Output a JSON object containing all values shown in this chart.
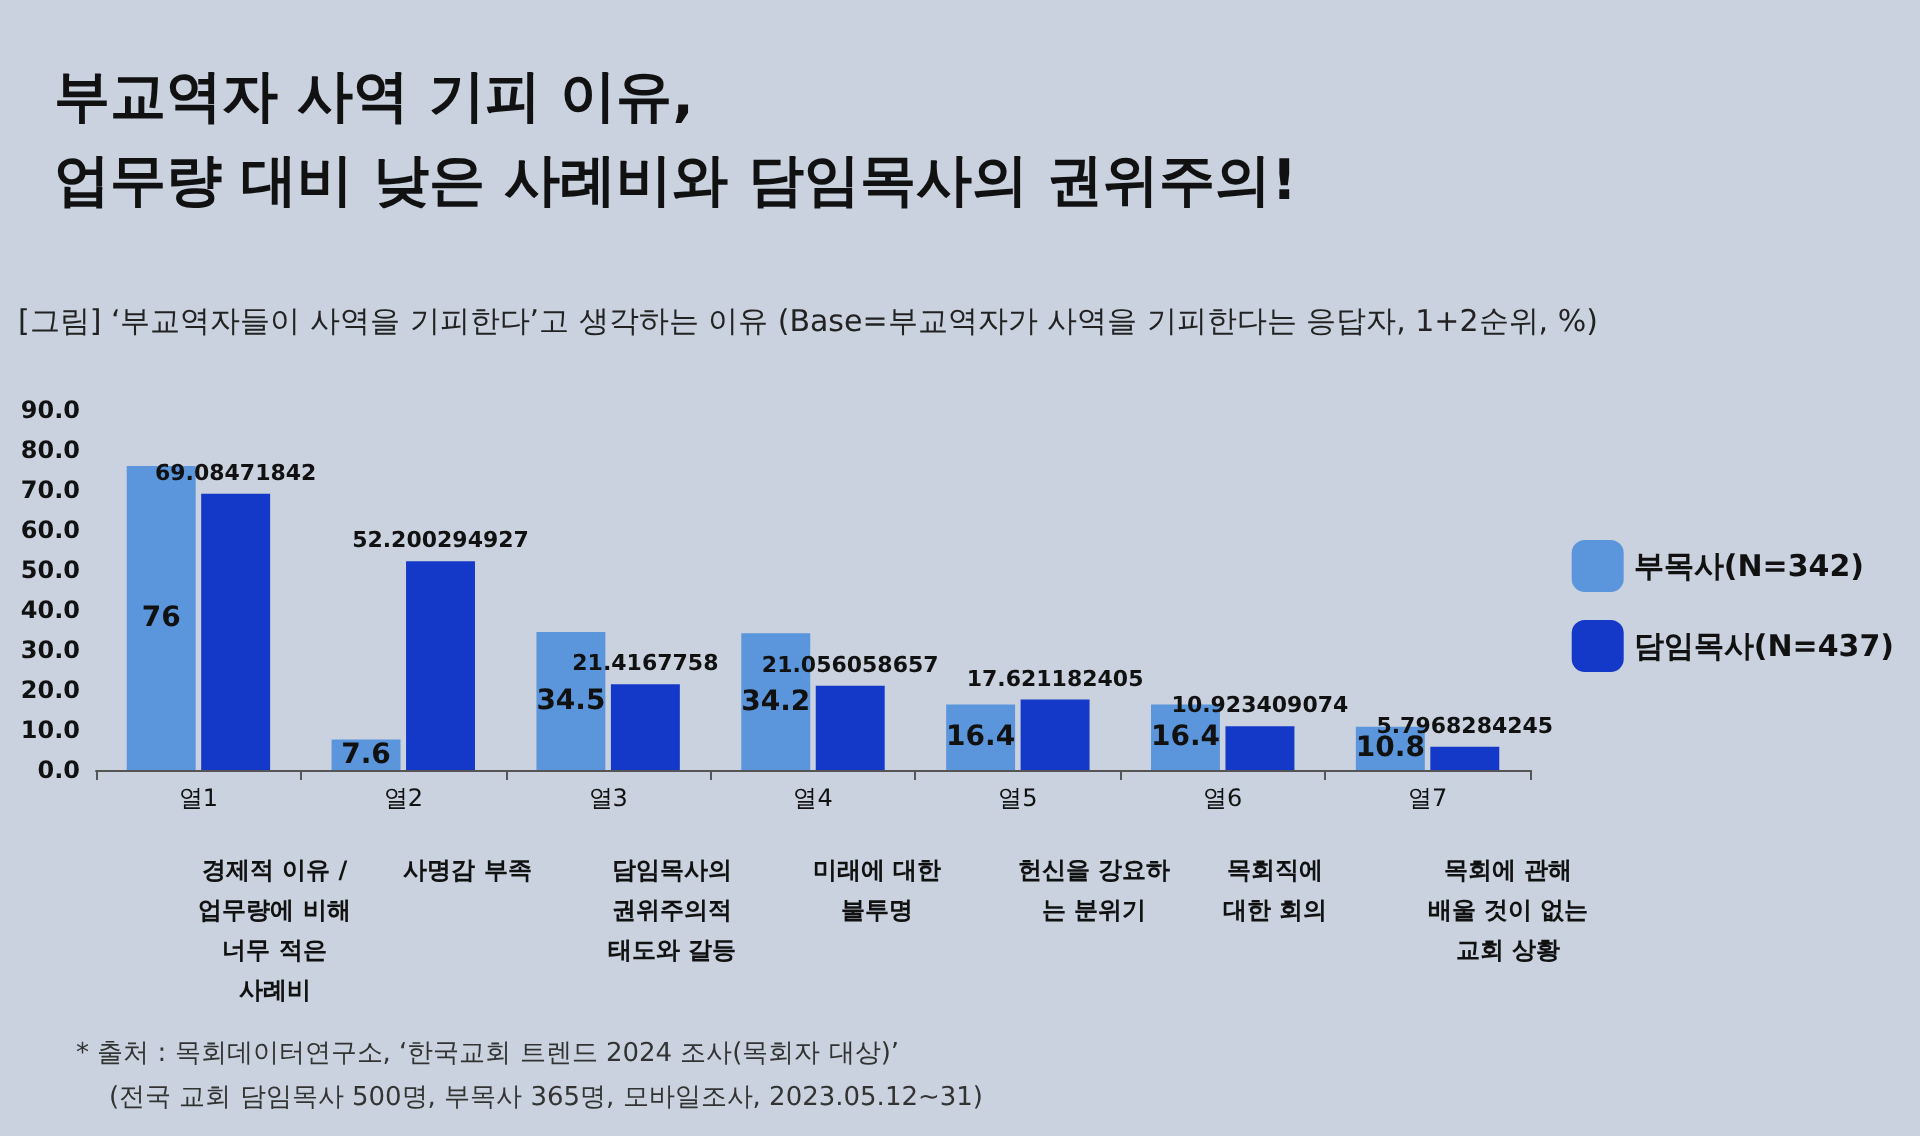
{
  "chart_data": {
    "type": "bar",
    "title": "부교역자 사역 기피 이유,\n업무량 대비 낮은 사례비와 담임목사의 권위주의!",
    "subtitle": "[그림] ‘부교역자들이 사역을 기피한다’고 생각하는 이유 (Base=부교역자가 사역을 기피한다는 응답자, 1+2순위, %)",
    "categories": [
      "열1",
      "열2",
      "열3",
      "열4",
      "열5",
      "열6",
      "열7"
    ],
    "series": [
      {
        "name": "부목사(N=342)",
        "color": "#5b96dc",
        "values": [
          76,
          7.6,
          34.5,
          34.2,
          16.4,
          16.4,
          10.8
        ]
      },
      {
        "name": "담임목사(N=437)",
        "color": "#1438c8",
        "values": [
          69.08471842,
          52.200294927,
          21.4167758,
          21.056058657,
          17.621182405,
          10.923409074,
          5.7968284245
        ]
      }
    ],
    "ylim": [
      0,
      90
    ],
    "yticks": [
      {
        "value": 0,
        "label": "0.0"
      },
      {
        "value": 10,
        "label": "10.0"
      },
      {
        "value": 20,
        "label": "20.0"
      },
      {
        "value": 30,
        "label": "30.0"
      },
      {
        "value": 40,
        "label": "40.0"
      },
      {
        "value": 50,
        "label": "50.0"
      },
      {
        "value": 60,
        "label": "60.0"
      },
      {
        "value": 70,
        "label": "70.0"
      },
      {
        "value": 80,
        "label": "80.0"
      },
      {
        "value": 90,
        "label": "90.0"
      }
    ],
    "legend": "right",
    "data_labels": true,
    "annotations": [
      "경제적 이유 /\n업무량에 비해\n너무 적은\n사례비",
      "사명감 부족",
      "담임목사의\n권위주의적\n태도와 갈등",
      "미래에 대한\n불투명",
      "헌신을 강요하\n는 분위기",
      "목회직에\n대한 회의",
      "목회에 관해\n배울 것이 없는\n교회 상황",
      "* 출처 : 목회데이터연구소, ‘한국교회 트렌드 2024 조사(목회자 대상)’\n    (전국 교회 담임목사 500명, 부목사 365명, 모바일조사, 2023.05.12~31)"
    ]
  }
}
